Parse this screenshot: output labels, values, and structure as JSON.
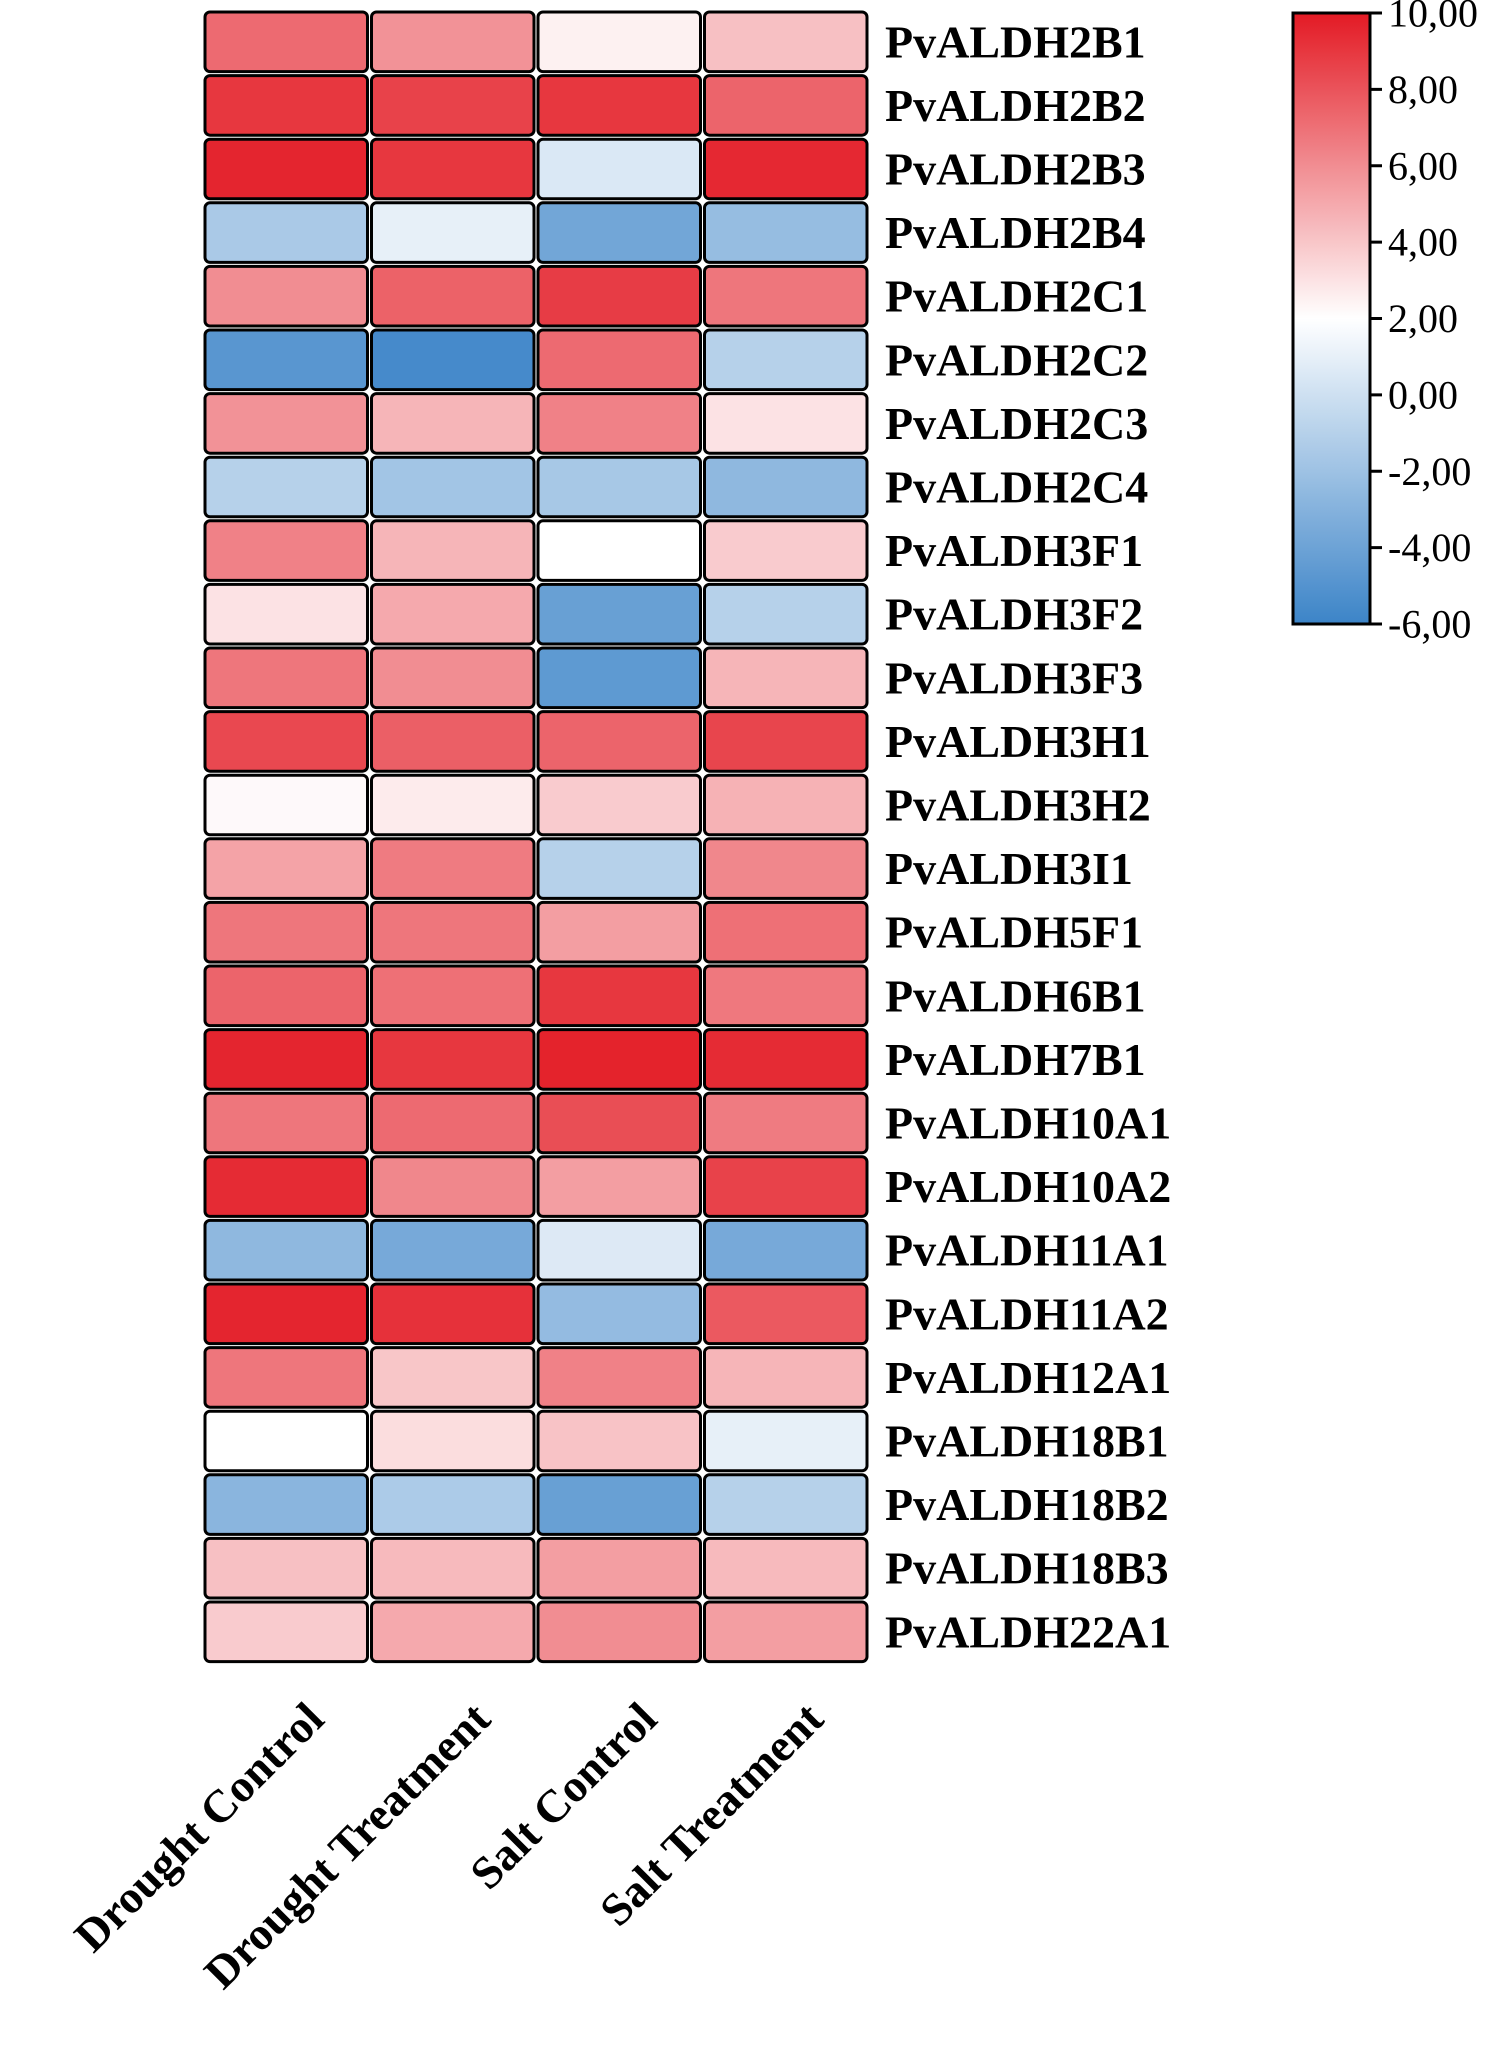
{
  "chart_data": {
    "type": "heatmap",
    "title": "",
    "columns": [
      "Drought Control",
      "Drought Treatment",
      "Salt Control",
      "Salt Treatment"
    ],
    "rows": [
      "PvALDH2B1",
      "PvALDH2B2",
      "PvALDH2B3",
      "PvALDH2B4",
      "PvALDH2C1",
      "PvALDH2C2",
      "PvALDH2C3",
      "PvALDH2C4",
      "PvALDH3F1",
      "PvALDH3F2",
      "PvALDH3F3",
      "PvALDH3H1",
      "PvALDH3H2",
      "PvALDH3I1",
      "PvALDH5F1",
      "PvALDH6B1",
      "PvALDH7B1",
      "PvALDH10A1",
      "PvALDH10A2",
      "PvALDH11A1",
      "PvALDH11A2",
      "PvALDH12A1",
      "PvALDH18B1",
      "PvALDH18B2",
      "PvALDH18B3",
      "PvALDH22A1"
    ],
    "values": [
      [
        7.2,
        5.8,
        2.5,
        4.2
      ],
      [
        9.0,
        8.6,
        9.0,
        7.4
      ],
      [
        9.6,
        9.0,
        0.5,
        9.5
      ],
      [
        -1.5,
        1.0,
        -3.8,
        -2.3
      ],
      [
        6.0,
        7.5,
        8.8,
        6.8
      ],
      [
        -4.8,
        -5.6,
        7.2,
        -1.0
      ],
      [
        5.8,
        4.6,
        6.4,
        3.0
      ],
      [
        -1.0,
        -1.8,
        -1.6,
        -2.6
      ],
      [
        6.4,
        4.6,
        2.0,
        3.8
      ],
      [
        3.0,
        5.0,
        -4.2,
        -1.0
      ],
      [
        6.8,
        6.0,
        -4.6,
        4.6
      ],
      [
        8.4,
        7.6,
        7.4,
        8.5
      ],
      [
        2.2,
        2.7,
        3.8,
        4.7
      ],
      [
        5.2,
        6.6,
        -1.0,
        6.2
      ],
      [
        6.8,
        6.8,
        5.4,
        7.0
      ],
      [
        7.4,
        7.0,
        9.0,
        6.7
      ],
      [
        9.6,
        9.0,
        9.7,
        9.4
      ],
      [
        6.8,
        7.2,
        8.2,
        6.6
      ],
      [
        9.4,
        6.2,
        5.4,
        8.6
      ],
      [
        -2.6,
        -3.6,
        0.6,
        -3.6
      ],
      [
        9.6,
        9.2,
        -2.4,
        7.8
      ],
      [
        6.8,
        4.0,
        6.4,
        4.6
      ],
      [
        2.0,
        3.2,
        4.1,
        1.0
      ],
      [
        -2.8,
        -1.4,
        -4.2,
        -1.0
      ],
      [
        4.2,
        4.4,
        5.4,
        4.4
      ],
      [
        3.8,
        5.0,
        6.0,
        5.4
      ]
    ],
    "colorbar": {
      "min": -6,
      "max": 10,
      "ticks": [
        "10,00",
        "8,00",
        "6,00",
        "4,00",
        "2,00",
        "0,00",
        "-2,00",
        "-4,00",
        "-6,00"
      ],
      "tick_values": [
        10,
        8,
        6,
        4,
        2,
        0,
        -2,
        -4,
        -6
      ],
      "colors": {
        "low": "#3c84c8",
        "mid": "#ffffff",
        "mid_value": 2,
        "high": "#e31a24"
      }
    }
  }
}
